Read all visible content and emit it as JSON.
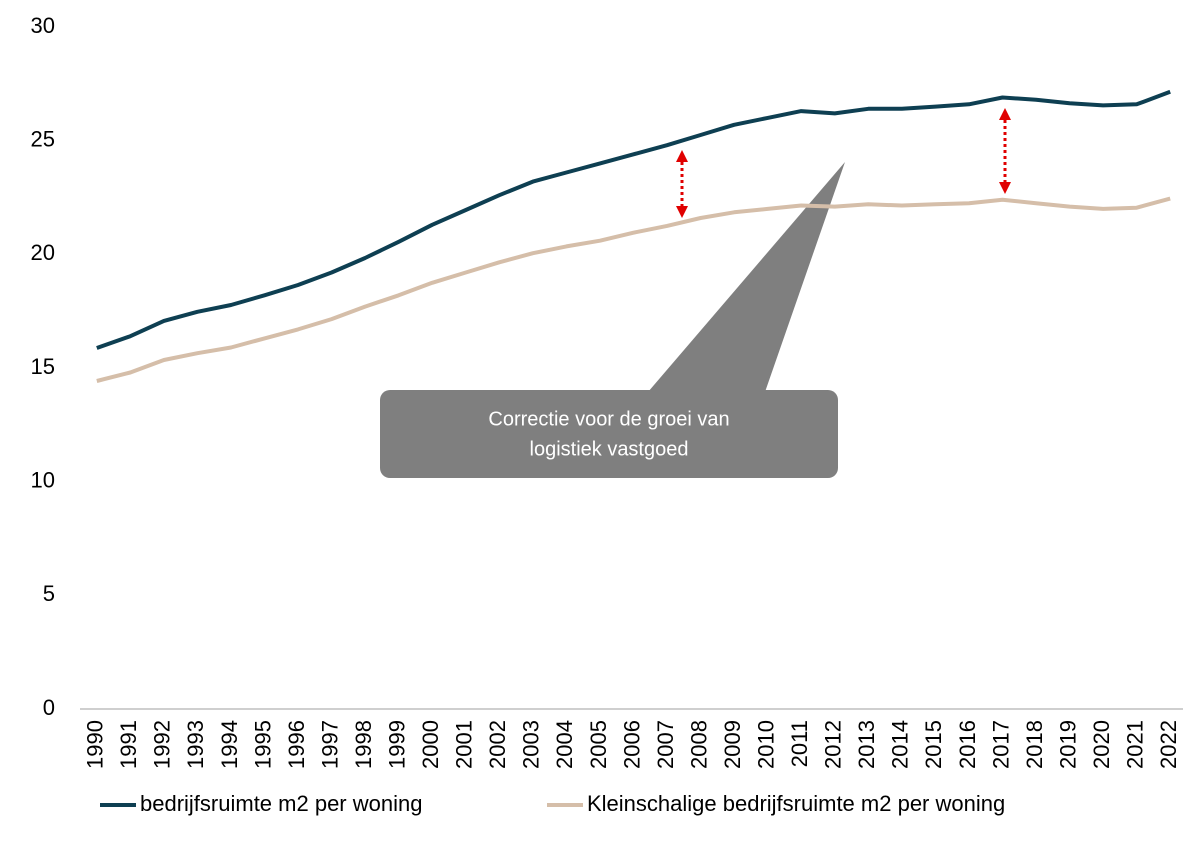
{
  "chart_data": {
    "type": "line",
    "categories": [
      "1990",
      "1991",
      "1992",
      "1993",
      "1994",
      "1995",
      "1996",
      "1997",
      "1998",
      "1999",
      "2000",
      "2001",
      "2002",
      "2003",
      "2004",
      "2005",
      "2006",
      "2007",
      "2008",
      "2009",
      "2010",
      "2011",
      "2012",
      "2013",
      "2014",
      "2015",
      "2016",
      "2017",
      "2018",
      "2019",
      "2020",
      "2021",
      "2022"
    ],
    "series": [
      {
        "name": "bedrijfsruimte m2 per woning",
        "color": "#0e3f52",
        "values": [
          15.88,
          16.4,
          17.07,
          17.47,
          17.77,
          18.2,
          18.65,
          19.2,
          19.84,
          20.55,
          21.3,
          21.95,
          22.6,
          23.2,
          23.6,
          24.0,
          24.4,
          24.8,
          25.25,
          25.7,
          26.0,
          26.3,
          26.2,
          26.4,
          26.4,
          26.5,
          26.6,
          26.9,
          26.8,
          26.65,
          26.55,
          26.6,
          27.15
        ]
      },
      {
        "name": "Kleinschalige bedrijfsruimte m2 per woning",
        "color": "#d5bea9",
        "values": [
          14.43,
          14.8,
          15.35,
          15.65,
          15.9,
          16.3,
          16.7,
          17.15,
          17.7,
          18.2,
          18.75,
          19.2,
          19.65,
          20.05,
          20.35,
          20.6,
          20.95,
          21.25,
          21.6,
          21.85,
          22.0,
          22.15,
          22.1,
          22.2,
          22.15,
          22.2,
          22.25,
          22.4,
          22.25,
          22.1,
          22.0,
          22.05,
          22.45
        ]
      }
    ],
    "ylim": [
      0,
      30
    ],
    "yticks": [
      0,
      5,
      10,
      15,
      20,
      25,
      30
    ],
    "grid": false,
    "legend": "bottom",
    "annotation": [
      "Correctie voor de groei van",
      "logistiek vastgoed"
    ]
  }
}
